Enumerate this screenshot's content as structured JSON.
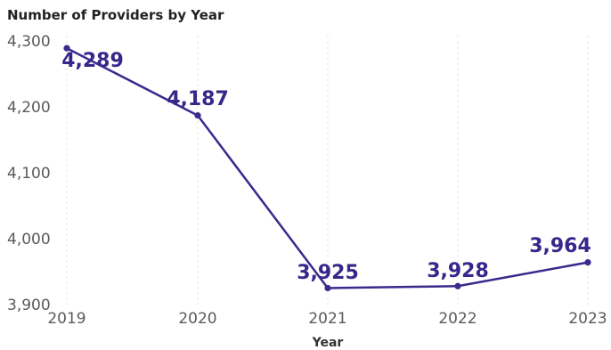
{
  "chart_data": {
    "type": "line",
    "title": "Number of Providers by Year",
    "xlabel": "Year",
    "ylabel": "",
    "categories": [
      "2019",
      "2020",
      "2021",
      "2022",
      "2023"
    ],
    "series": [
      {
        "values": [
          4289,
          4187,
          3925,
          3928,
          3964
        ]
      }
    ],
    "data_labels": [
      "4,289",
      "4,187",
      "3,925",
      "3,928",
      "3,964"
    ],
    "yticks": [
      3900,
      4000,
      4100,
      4200,
      4300
    ],
    "ytick_labels": [
      "3,900",
      "4,000",
      "4,100",
      "4,200",
      "4,300"
    ],
    "ylim": [
      3900,
      4300
    ],
    "grid": "vertical dashed",
    "colors": {
      "line": "#3a2a8e",
      "label": "#35288a",
      "axis_text": "#5a5a5a",
      "title": "#222222",
      "grid": "#e6e6e6"
    }
  }
}
